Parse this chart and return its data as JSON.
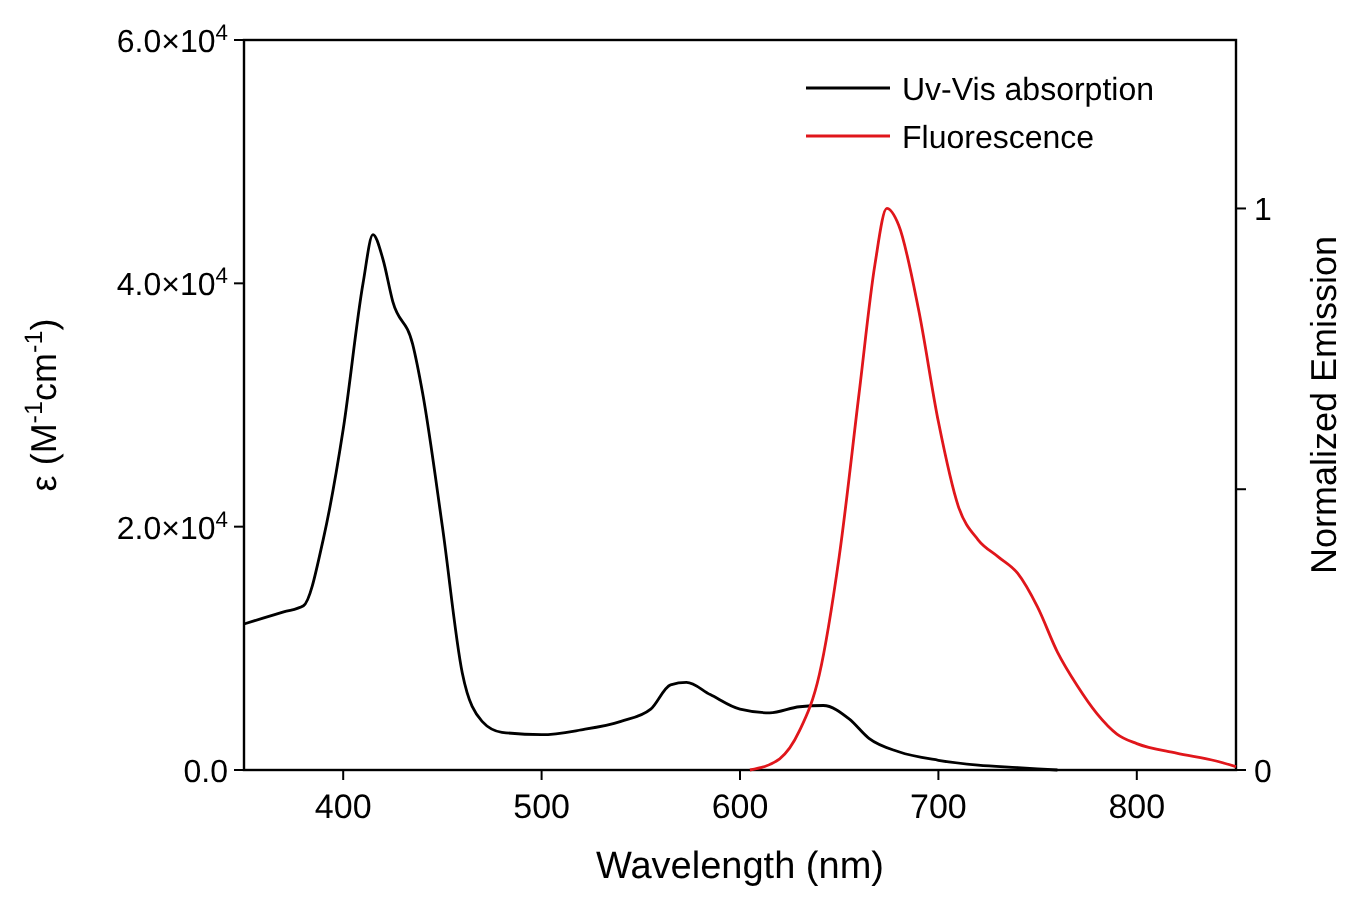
{
  "chart_data": {
    "type": "line",
    "xlabel": "Wavelength (nm)",
    "ylabel": "ε (M$^{-1}$cm$^{-1}$)",
    "y2label": "Normalized Emission",
    "xlim": [
      350,
      850
    ],
    "xticks": [
      400,
      500,
      600,
      700,
      800
    ],
    "ylim": [
      0,
      60000
    ],
    "yticks": [
      {
        "value": 0,
        "label": "0.0"
      },
      {
        "value": 20000,
        "label": "2.0×10$^{4}$"
      },
      {
        "value": 40000,
        "label": "4.0×10$^{4}$"
      },
      {
        "value": 60000,
        "label": "6.0×10$^{4}$"
      }
    ],
    "y2lim": [
      0,
      1.3
    ],
    "y2ticks": [
      0,
      {
        "value": 0.5,
        "label": null
      },
      1
    ],
    "legend": "top right",
    "grid": false,
    "series": [
      {
        "name": "Uv-Vis absorption",
        "color": "#000000",
        "x": [
          350,
          360,
          370,
          380,
          390,
          400,
          410,
          415,
          420,
          425,
          435,
          440,
          450,
          460,
          470,
          480,
          500,
          520,
          540,
          555,
          565,
          573,
          585,
          600,
          615,
          630,
          642,
          655,
          665,
          680,
          700,
          720,
          740,
          760
        ],
        "values": [
          12000,
          12500,
          13000,
          13500,
          19000,
          28000,
          40000,
          44000,
          42000,
          38500,
          35000,
          31000,
          20000,
          8000,
          4000,
          3100,
          2900,
          3300,
          4000,
          5000,
          7000,
          7200,
          6200,
          5000,
          4700,
          5200,
          5300,
          4200,
          2600,
          1500,
          800,
          400,
          200,
          0
        ]
      },
      {
        "name": "Fluorescence",
        "color": "#e0161b",
        "axis": "y2",
        "x": [
          605,
          620,
          630,
          640,
          650,
          660,
          668,
          674,
          680,
          690,
          700,
          710,
          720,
          730,
          740,
          750,
          760,
          770,
          780,
          790,
          800,
          820,
          840,
          850
        ],
        "values": [
          0,
          0.02,
          0.07,
          0.17,
          0.38,
          0.67,
          0.9,
          1.0,
          0.97,
          0.82,
          0.62,
          0.47,
          0.41,
          0.38,
          0.35,
          0.29,
          0.21,
          0.15,
          0.1,
          0.064,
          0.047,
          0.03,
          0.016,
          0.006
        ]
      }
    ]
  }
}
